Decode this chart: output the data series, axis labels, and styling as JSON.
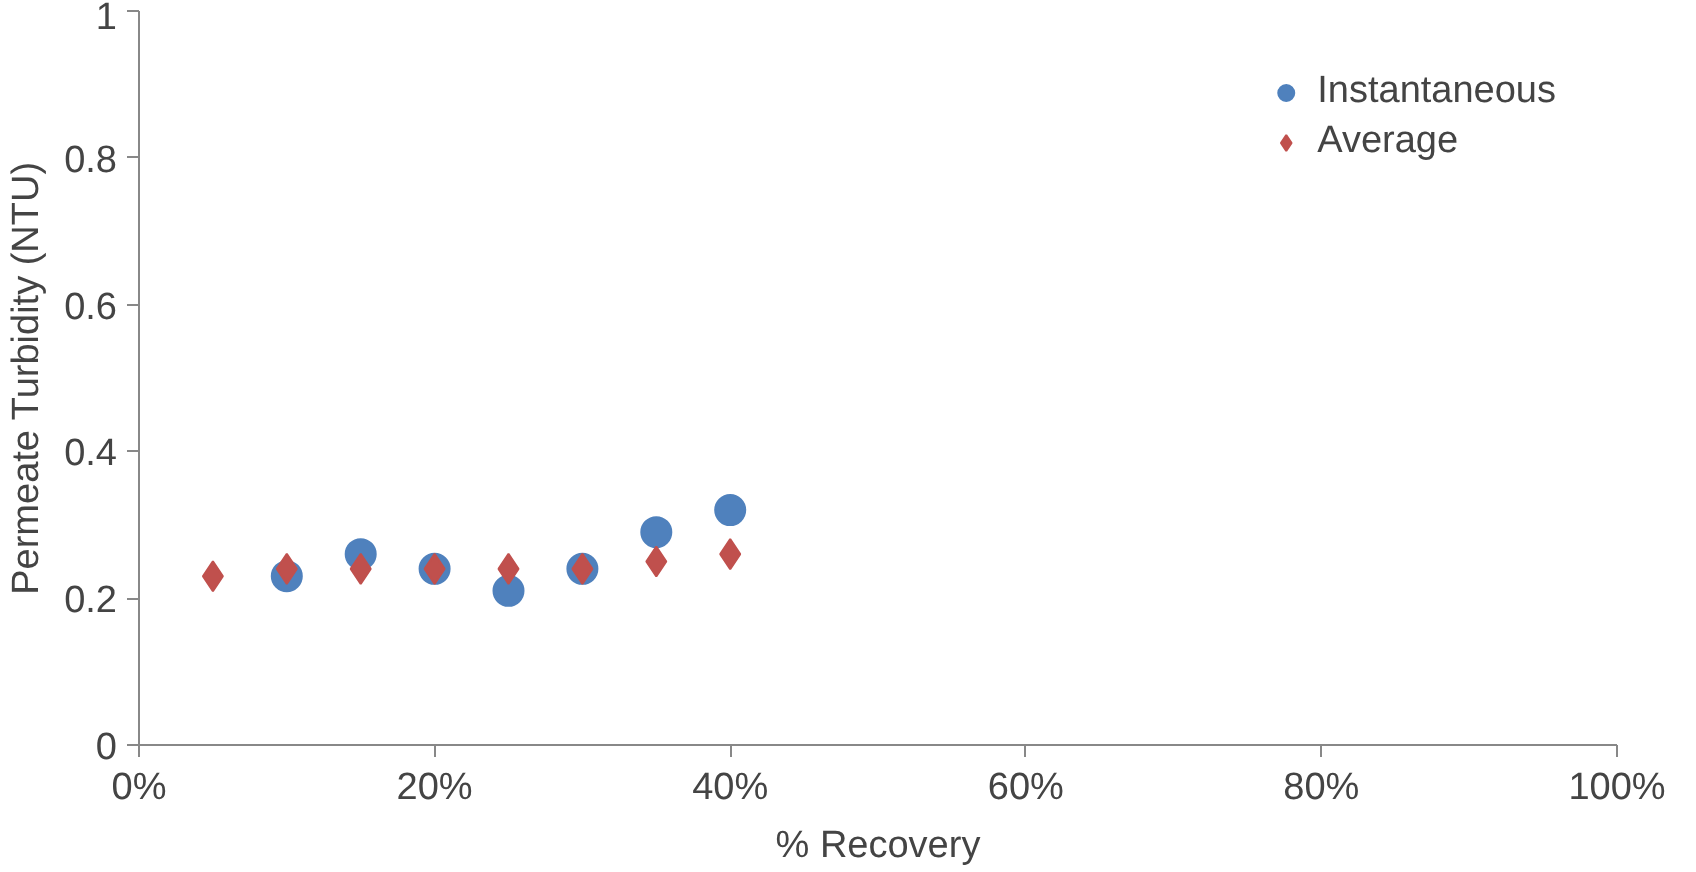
{
  "chart_data": {
    "type": "scatter",
    "xlabel": "% Recovery",
    "ylabel": "Permeate Turbidity (NTU)",
    "series": [
      {
        "name": "Instantaneous",
        "color": "#4f81bd",
        "marker": "circle",
        "x": [
          0.1,
          0.15,
          0.2,
          0.25,
          0.3,
          0.35,
          0.4
        ],
        "values": [
          0.23,
          0.26,
          0.24,
          0.21,
          0.24,
          0.29,
          0.32
        ]
      },
      {
        "name": "Average",
        "color": "#c0504d",
        "marker": "diamond",
        "x": [
          0.05,
          0.1,
          0.15,
          0.2,
          0.25,
          0.3,
          0.35,
          0.4
        ],
        "values": [
          0.23,
          0.24,
          0.24,
          0.24,
          0.24,
          0.24,
          0.25,
          0.26
        ]
      }
    ],
    "xlim": [
      0,
      1
    ],
    "ylim": [
      0,
      1
    ],
    "xticks": [
      {
        "value": 0,
        "label": "0%"
      },
      {
        "value": 0.2,
        "label": "20%"
      },
      {
        "value": 0.4,
        "label": "40%"
      },
      {
        "value": 0.6,
        "label": "60%"
      },
      {
        "value": 0.8,
        "label": "80%"
      },
      {
        "value": 1,
        "label": "100%"
      }
    ],
    "yticks": [
      0,
      {
        "value": 0.2,
        "label": "0.2"
      },
      {
        "value": 0.4,
        "label": "0.4"
      },
      {
        "value": 0.6,
        "label": "0.6"
      },
      {
        "value": 0.8,
        "label": "0.8"
      },
      1
    ],
    "grid": false,
    "legend": "top right"
  }
}
